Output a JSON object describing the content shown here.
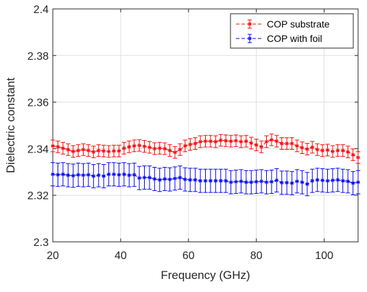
{
  "chart_data": {
    "type": "line",
    "title": "",
    "xlabel": "Frequency (GHz)",
    "ylabel": "Dielectric constant",
    "xlim": [
      20,
      110
    ],
    "ylim": [
      2.3,
      2.4
    ],
    "xticks": [
      "20",
      "40",
      "60",
      "80",
      "100"
    ],
    "yticks": [
      "2.3",
      "2.32",
      "2.34",
      "2.36",
      "2.38",
      "2.4"
    ],
    "grid": true,
    "legend_position": "top-right",
    "x": [
      20,
      21.5,
      23,
      24.5,
      26,
      27.5,
      29,
      30.5,
      32,
      33.5,
      35,
      36.5,
      38,
      39.5,
      41,
      42.5,
      44,
      45.5,
      47,
      48.5,
      50,
      51.5,
      53,
      54.5,
      56,
      57.5,
      59,
      60.5,
      62,
      63.5,
      65,
      66.5,
      68,
      69.5,
      71,
      72.5,
      74,
      75.5,
      77,
      78.5,
      80,
      81.5,
      83,
      84.5,
      86,
      87.5,
      89,
      90.5,
      92,
      93.5,
      95,
      96.5,
      98,
      99.5,
      101,
      102.5,
      104,
      105.5,
      107,
      108.5,
      110
    ],
    "series": [
      {
        "name": "COP substrate",
        "color": "#ff0000",
        "marker": "asterisk",
        "line_style": "dashed",
        "values": [
          2.3412,
          2.3408,
          2.3402,
          2.3396,
          2.3388,
          2.3392,
          2.3396,
          2.3392,
          2.3386,
          2.3392,
          2.339,
          2.3388,
          2.339,
          2.339,
          2.3402,
          2.3408,
          2.3412,
          2.3414,
          2.341,
          2.3406,
          2.34,
          2.3402,
          2.34,
          2.3392,
          2.3384,
          2.3396,
          2.3412,
          2.3418,
          2.3422,
          2.343,
          2.3432,
          2.3432,
          2.343,
          2.3436,
          2.3434,
          2.3432,
          2.3434,
          2.343,
          2.3432,
          2.3424,
          2.3416,
          2.3408,
          2.343,
          2.3438,
          2.3432,
          2.3422,
          2.3422,
          2.3422,
          2.3412,
          2.3404,
          2.3398,
          2.3406,
          2.3396,
          2.3392,
          2.3394,
          2.3388,
          2.3392,
          2.3392,
          2.3386,
          2.3374,
          2.3362
        ],
        "error": 0.0025
      },
      {
        "name": "COP with foil",
        "color": "#0000ff",
        "marker": "asterisk",
        "line_style": "dashed",
        "values": [
          2.329,
          2.3288,
          2.329,
          2.3286,
          2.3284,
          2.3288,
          2.3286,
          2.3288,
          2.3282,
          2.3286,
          2.3282,
          2.329,
          2.329,
          2.3288,
          2.329,
          2.3286,
          2.3288,
          2.3274,
          2.3276,
          2.3276,
          2.327,
          2.3266,
          2.327,
          2.3268,
          2.3272,
          2.3276,
          2.3268,
          2.3266,
          2.3266,
          2.3262,
          2.3262,
          2.3262,
          2.3262,
          2.3262,
          2.3262,
          2.3256,
          2.3258,
          2.326,
          2.3256,
          2.3256,
          2.3258,
          2.326,
          2.3256,
          2.3258,
          2.3264,
          2.3254,
          2.3254,
          2.3252,
          2.326,
          2.3256,
          2.3248,
          2.3262,
          2.3266,
          2.3264,
          2.3262,
          2.3264,
          2.3266,
          2.3262,
          2.326,
          2.3252,
          2.3256
        ],
        "error": 0.005
      }
    ]
  }
}
